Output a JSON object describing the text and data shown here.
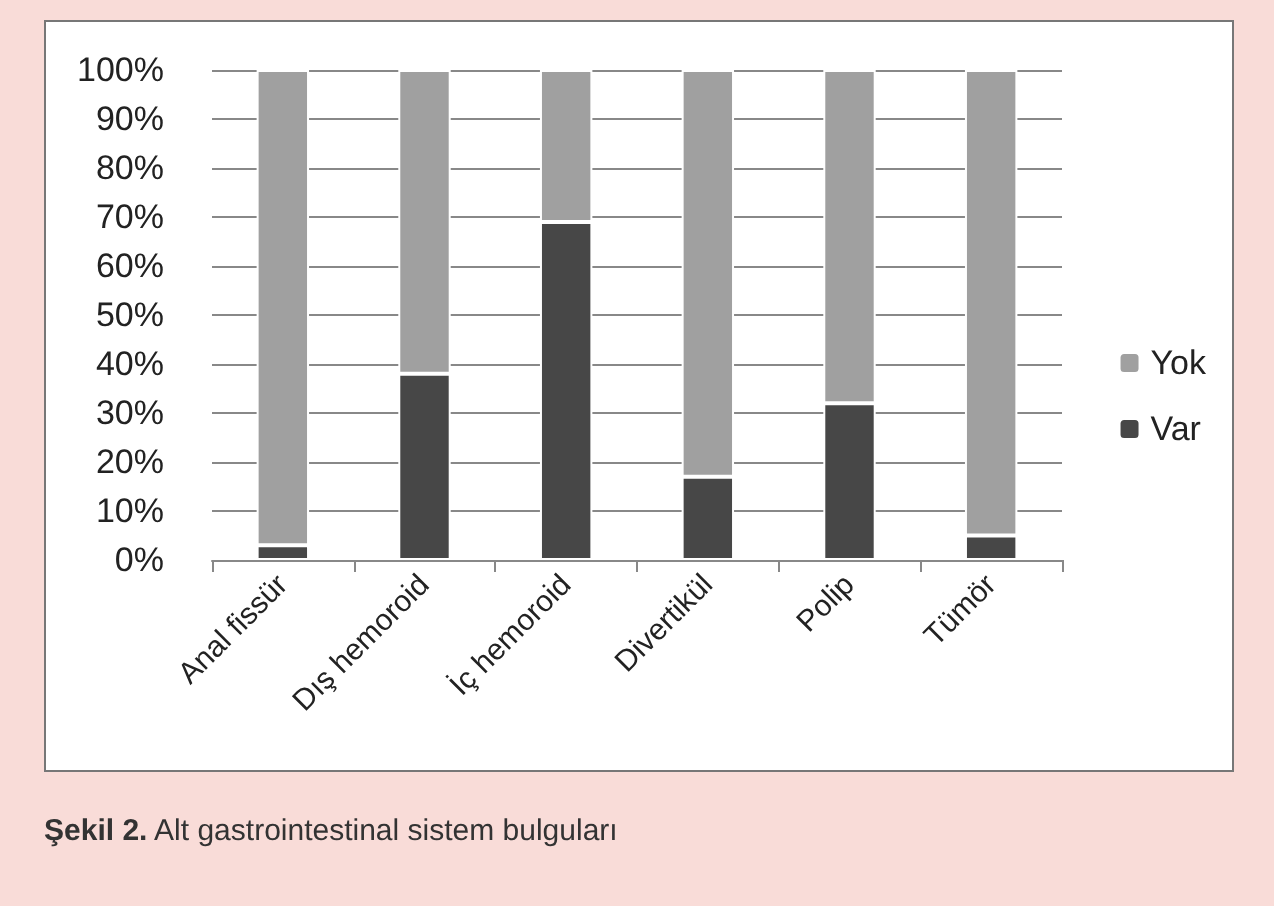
{
  "chart_data": {
    "type": "bar",
    "stacked": true,
    "categories": [
      "Anal fissür",
      "Dış hemoroid",
      "İç hemoroid",
      "Divertikül",
      "Polip",
      "Tümör"
    ],
    "series": [
      {
        "name": "Var",
        "color": "#474747",
        "values": [
          3,
          38,
          69,
          17,
          32,
          5
        ]
      },
      {
        "name": "Yok",
        "color": "#a0a0a0",
        "values": [
          97,
          62,
          31,
          83,
          68,
          95
        ]
      }
    ],
    "ylim": [
      0,
      100
    ],
    "yticks": [
      {
        "value": 0,
        "label": "0%"
      },
      {
        "value": 10,
        "label": "10%"
      },
      {
        "value": 20,
        "label": "20%"
      },
      {
        "value": 30,
        "label": "30%"
      },
      {
        "value": 40,
        "label": "40%"
      },
      {
        "value": 50,
        "label": "50%"
      },
      {
        "value": 60,
        "label": "60%"
      },
      {
        "value": 70,
        "label": "70%"
      },
      {
        "value": 80,
        "label": "80%"
      },
      {
        "value": 90,
        "label": "90%"
      },
      {
        "value": 100,
        "label": "100%"
      }
    ],
    "grid": "y",
    "legend": "right",
    "annotations": [
      "Şekil 2. Alt gastrointestinal sistem bulguları"
    ]
  }
}
